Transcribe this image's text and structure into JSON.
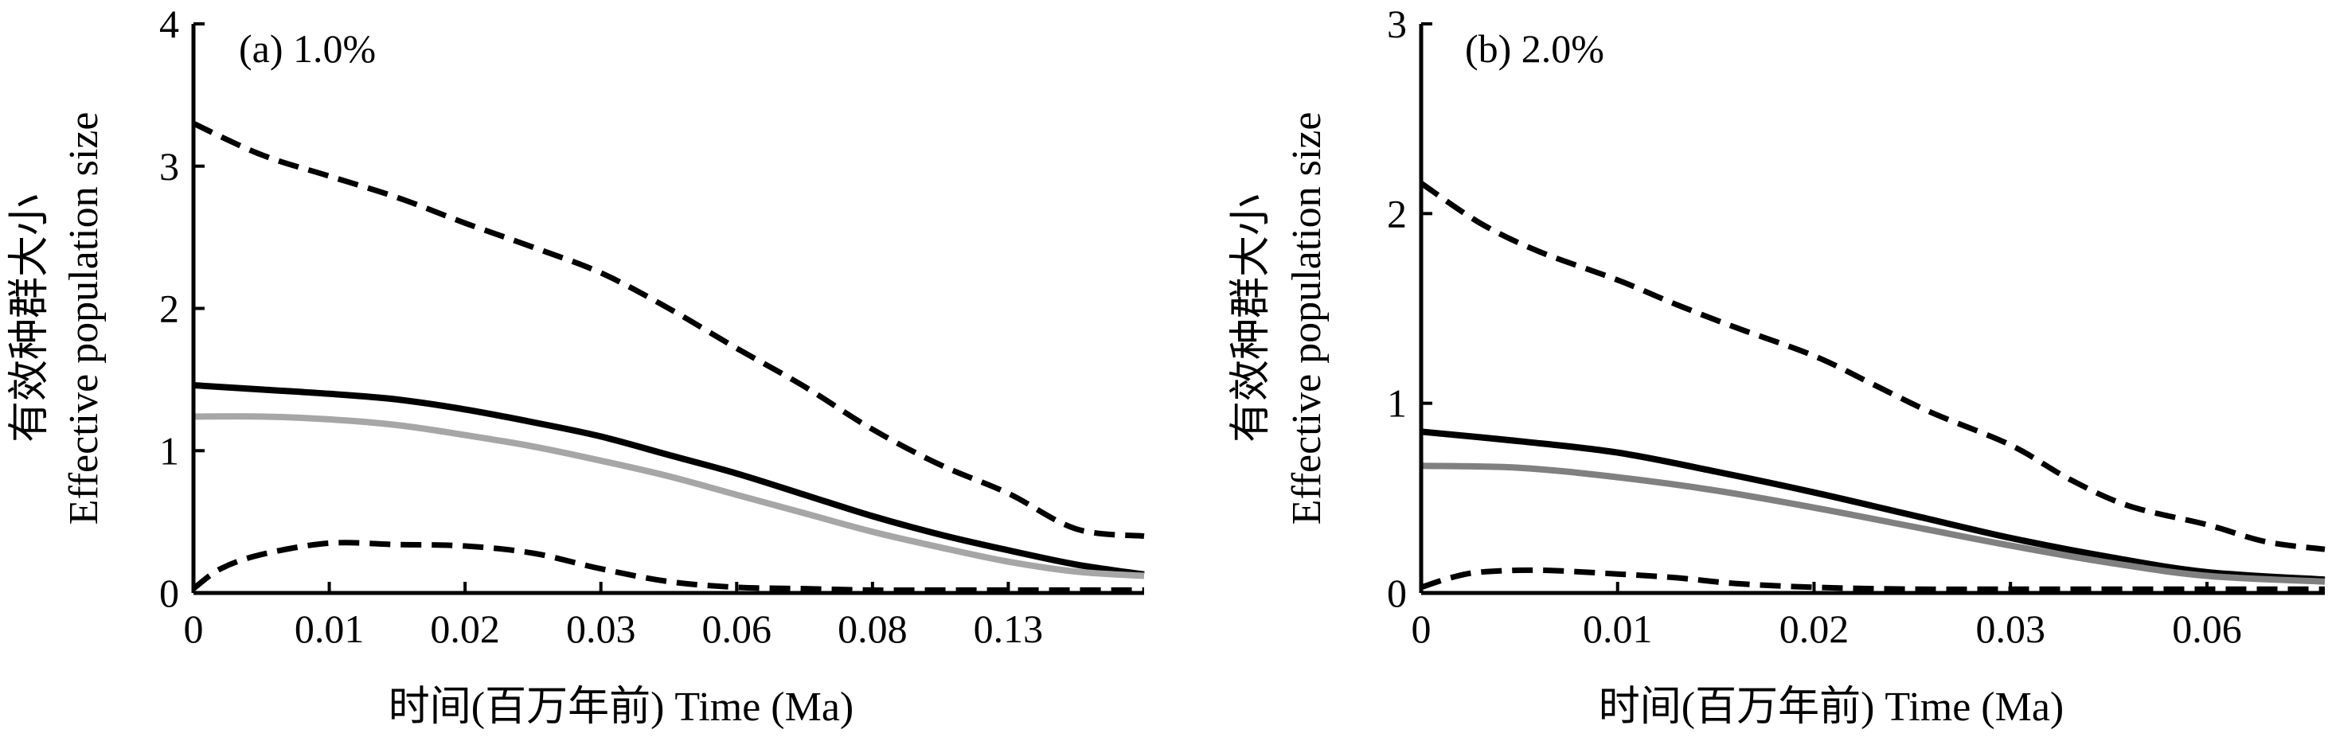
{
  "chart_data": [
    {
      "type": "line",
      "panel_label": "(a) 1.0%",
      "xlabel": "时间(百万年前) Time (Ma)",
      "ylabel_zh": "有效种群大小",
      "ylabel_en": "Effective population size",
      "categories": [
        "0",
        "0.01",
        "0.02",
        "0.03",
        "0.06",
        "0.08",
        "0.13"
      ],
      "x_ticks_at": [
        0,
        1,
        2,
        3,
        4,
        5,
        6
      ],
      "xlim": [
        0,
        7.0
      ],
      "ylim": [
        0,
        4
      ],
      "yticks": [
        0,
        1,
        2,
        3,
        4
      ],
      "grid": false,
      "series": [
        {
          "style": "dashed",
          "color": "#000000",
          "x": [
            0,
            0.5,
            1,
            1.5,
            2,
            2.5,
            3,
            3.5,
            4,
            4.5,
            5,
            5.5,
            6,
            6.5,
            7.0
          ],
          "values": [
            3.3,
            3.08,
            2.93,
            2.78,
            2.6,
            2.43,
            2.25,
            2.0,
            1.72,
            1.45,
            1.15,
            0.9,
            0.7,
            0.45,
            0.4
          ]
        },
        {
          "style": "dashed",
          "color": "#000000",
          "x": [
            0,
            0.2,
            0.5,
            1,
            1.5,
            2,
            2.5,
            3,
            3.5,
            4,
            4.5,
            5,
            5.5,
            6,
            6.5,
            7.0
          ],
          "values": [
            0.03,
            0.17,
            0.27,
            0.35,
            0.34,
            0.33,
            0.28,
            0.17,
            0.08,
            0.04,
            0.03,
            0.02,
            0.02,
            0.02,
            0.02,
            0.02
          ]
        },
        {
          "style": "solid",
          "color": "#000000",
          "x": [
            0,
            0.5,
            1,
            1.5,
            2,
            2.5,
            3,
            3.5,
            4,
            4.5,
            5,
            5.5,
            6,
            6.5,
            7.0
          ],
          "values": [
            1.46,
            1.43,
            1.4,
            1.36,
            1.29,
            1.2,
            1.1,
            0.97,
            0.84,
            0.69,
            0.54,
            0.41,
            0.3,
            0.2,
            0.13
          ]
        },
        {
          "style": "solid",
          "color": "#a6a6a6",
          "x": [
            0,
            0.5,
            1,
            1.5,
            2,
            2.5,
            3,
            3.5,
            4,
            4.5,
            5,
            5.5,
            6,
            6.5,
            7.0
          ],
          "values": [
            1.24,
            1.24,
            1.22,
            1.18,
            1.11,
            1.03,
            0.93,
            0.82,
            0.69,
            0.56,
            0.43,
            0.32,
            0.22,
            0.15,
            0.12
          ]
        }
      ]
    },
    {
      "type": "line",
      "panel_label": "(b) 2.0%",
      "xlabel": "时间(百万年前) Time (Ma)",
      "ylabel_zh": "有效种群大小",
      "ylabel_en": "Effective population size",
      "categories": [
        "0",
        "0.01",
        "0.02",
        "0.03",
        "0.06"
      ],
      "x_ticks_at": [
        0,
        1,
        2,
        3,
        4
      ],
      "xlim": [
        0,
        4.6
      ],
      "ylim": [
        0,
        3
      ],
      "yticks": [
        0,
        1,
        2,
        3
      ],
      "grid": false,
      "series": [
        {
          "style": "dashed",
          "color": "#000000",
          "x": [
            0,
            0.3,
            0.6,
            1,
            1.3,
            1.6,
            2,
            2.3,
            2.6,
            3,
            3.3,
            3.6,
            4,
            4.3,
            4.6
          ],
          "values": [
            2.16,
            1.95,
            1.8,
            1.65,
            1.52,
            1.4,
            1.25,
            1.1,
            0.95,
            0.78,
            0.6,
            0.46,
            0.36,
            0.27,
            0.23
          ]
        },
        {
          "style": "dashed",
          "color": "#000000",
          "x": [
            0,
            0.15,
            0.3,
            0.6,
            1,
            1.3,
            1.6,
            2,
            2.5,
            3,
            3.5,
            4,
            4.6
          ],
          "values": [
            0.03,
            0.08,
            0.11,
            0.12,
            0.1,
            0.08,
            0.05,
            0.03,
            0.02,
            0.02,
            0.02,
            0.02,
            0.02
          ]
        },
        {
          "style": "solid",
          "color": "#000000",
          "x": [
            0,
            0.5,
            1,
            1.5,
            2,
            2.5,
            3,
            3.5,
            4,
            4.6
          ],
          "values": [
            0.85,
            0.8,
            0.74,
            0.64,
            0.53,
            0.41,
            0.29,
            0.19,
            0.11,
            0.07
          ]
        },
        {
          "style": "solid",
          "color": "#808080",
          "x": [
            0,
            0.5,
            1,
            1.5,
            2,
            2.5,
            3,
            3.5,
            4,
            4.6
          ],
          "values": [
            0.67,
            0.66,
            0.61,
            0.54,
            0.45,
            0.35,
            0.25,
            0.16,
            0.09,
            0.06
          ]
        }
      ]
    }
  ]
}
